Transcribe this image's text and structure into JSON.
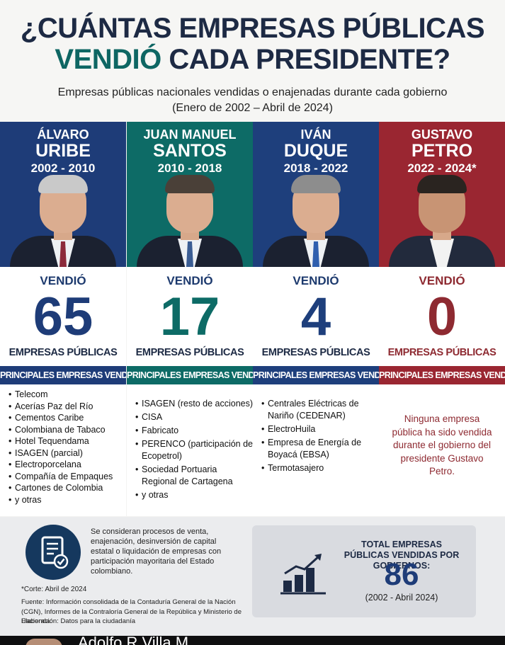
{
  "header": {
    "title_line1": "¿CUÁNTAS EMPRESAS PÚBLICAS",
    "title_line2_accent": "VENDIÓ",
    "title_line2_rest": " CADA PRESIDENTE?",
    "subtitle": "Empresas públicas nacionales vendidas o enajenadas durante cada gobierno",
    "date_range": "(Enero de 2002 – Abril de 2024)"
  },
  "presidents": [
    {
      "first_name": "ÁLVARO",
      "last_name": "URIBE",
      "years": "2002 - 2010",
      "sold_label": "VENDIÓ",
      "count": "65",
      "unit": "EMPRESAS PÚBLICAS",
      "list_header": "PRINCIPALES EMPRESAS VENDIDAS",
      "companies": [
        "Telecom",
        "Acerías Paz del Río",
        "Cementos Caribe",
        "Colombiana de Tabaco",
        "Hotel Tequendama",
        "ISAGEN (parcial)",
        "Electroporcelana",
        "Compañía de Empaques",
        "Cartones de Colombia",
        "y otras"
      ],
      "color": "#1e3c78"
    },
    {
      "first_name": "JUAN MANUEL",
      "last_name": "SANTOS",
      "years": "2010 - 2018",
      "sold_label": "VENDIÓ",
      "count": "17",
      "unit": "EMPRESAS PÚBLICAS",
      "list_header": "PRINCIPALES EMPRESAS VENDIDAS",
      "companies": [
        "ISAGEN (resto de acciones)",
        "CISA",
        "Fabricato",
        "PERENCO (participación de Ecopetrol)",
        "Sociedad Portuaria Regional de Cartagena",
        "y otras"
      ],
      "color": "#0d6b66"
    },
    {
      "first_name": "IVÁN",
      "last_name": "DUQUE",
      "years": "2018 - 2022",
      "sold_label": "VENDIÓ",
      "count": "4",
      "unit": "EMPRESAS PÚBLICAS",
      "list_header": "PRINCIPALES EMPRESAS VENDIDAS",
      "companies": [
        "Centrales Eléctricas de Nariño (CEDENAR)",
        "ElectroHuila",
        "Empresa de Energía de Boyacá (EBSA)",
        "Termotasajero"
      ],
      "color": "#1e3f7c"
    },
    {
      "first_name": "GUSTAVO",
      "last_name": "PETRO",
      "years": "2022 - 2024*",
      "sold_label": "VENDIÓ",
      "count": "0",
      "unit": "EMPRESAS PÚBLICAS",
      "list_header": "PRINCIPALES EMPRESAS VENDIDAS",
      "none_message": "Ninguna empresa pública ha sido vendida durante el gobierno del presidente Gustavo Petro.",
      "color": "#9a2631"
    }
  ],
  "footer": {
    "definition": "Se consideran procesos de venta, enajenación, desinversión de capital estatal o liquidación de empresas con participación mayoritaria del Estado colombiano.",
    "cutoff": "*Corte: Abril de 2024",
    "source": "Fuente: Información consolidada de la Contaduría General de la Nación (CGN), Informes de la Contraloría General de la República y Ministerio de Hacienda.",
    "elaboration": "Elaboración: Datos para la ciudadanía",
    "total_label": "TOTAL EMPRESAS PÚBLICAS VENDIDAS POR GOBIERNOS:",
    "total_value": "86",
    "total_range": "(2002 - Abril 2024)"
  },
  "bottom_bar": {
    "author_name": "Adolfo R Villa M"
  },
  "icons": {
    "document": "document-check-icon",
    "growth": "growth-chart-icon"
  }
}
